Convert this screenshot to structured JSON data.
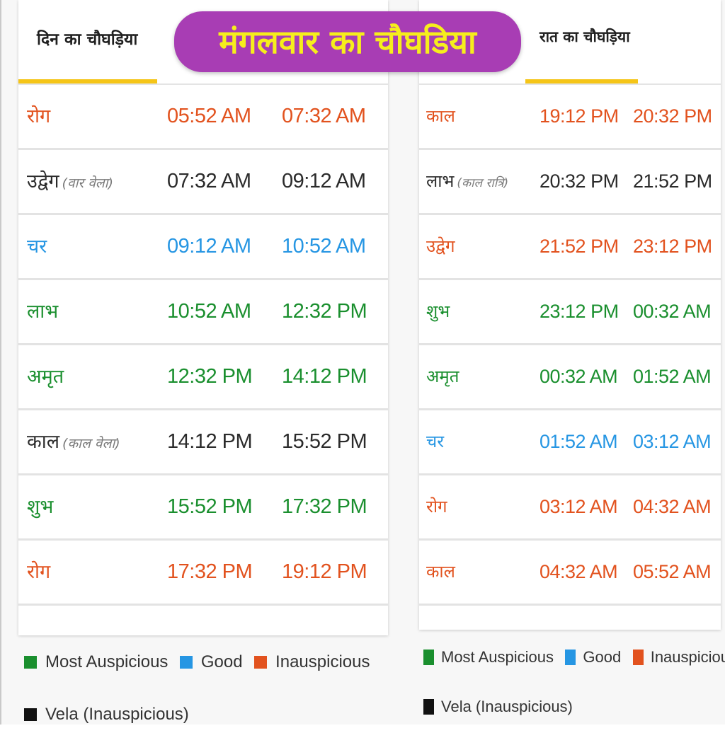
{
  "title": "मंगलवार का चौघडिया",
  "day": {
    "tab_label": "दिन का चौघड़िया",
    "rows": [
      {
        "name": "रोग",
        "note": "",
        "start": "05:52 AM",
        "end": "07:32 AM",
        "type": "red"
      },
      {
        "name": "उद्वेग",
        "note": "(वार वेला)",
        "start": "07:32 AM",
        "end": "09:12 AM",
        "type": "black"
      },
      {
        "name": "चर",
        "note": "",
        "start": "09:12 AM",
        "end": "10:52 AM",
        "type": "blue"
      },
      {
        "name": "लाभ",
        "note": "",
        "start": "10:52 AM",
        "end": "12:32 PM",
        "type": "green"
      },
      {
        "name": "अमृत",
        "note": "",
        "start": "12:32 PM",
        "end": "14:12 PM",
        "type": "green"
      },
      {
        "name": "काल",
        "note": "(काल वेला)",
        "start": "14:12 PM",
        "end": "15:52 PM",
        "type": "black"
      },
      {
        "name": "शुभ",
        "note": "",
        "start": "15:52 PM",
        "end": "17:32 PM",
        "type": "green"
      },
      {
        "name": "रोग",
        "note": "",
        "start": "17:32 PM",
        "end": "19:12 PM",
        "type": "red"
      }
    ]
  },
  "night": {
    "tab_label": "रात का चौघड़िया",
    "rows": [
      {
        "name": "काल",
        "note": "",
        "start": "19:12 PM",
        "end": "20:32 PM",
        "type": "red"
      },
      {
        "name": "लाभ",
        "note": "(काल रात्रि)",
        "start": "20:32 PM",
        "end": "21:52 PM",
        "type": "black"
      },
      {
        "name": "उद्वेग",
        "note": "",
        "start": "21:52 PM",
        "end": "23:12 PM",
        "type": "red"
      },
      {
        "name": "शुभ",
        "note": "",
        "start": "23:12 PM",
        "end": "00:32 AM",
        "type": "green"
      },
      {
        "name": "अमृत",
        "note": "",
        "start": "00:32 AM",
        "end": "01:52 AM",
        "type": "green"
      },
      {
        "name": "चर",
        "note": "",
        "start": "01:52 AM",
        "end": "03:12 AM",
        "type": "blue"
      },
      {
        "name": "रोग",
        "note": "",
        "start": "03:12 AM",
        "end": "04:32 AM",
        "type": "red"
      },
      {
        "name": "काल",
        "note": "",
        "start": "04:32 AM",
        "end": "05:52 AM",
        "type": "red"
      }
    ]
  },
  "legend": {
    "most_auspicious": "Most Auspicious",
    "good": "Good",
    "inauspicious": "Inauspicious",
    "vela": "Vela (Inauspicious)"
  },
  "colors": {
    "green": "#1a8f2e",
    "blue": "#2696e3",
    "red": "#e2521e",
    "black": "#1e1e1e",
    "tab_underline": "#f5c518",
    "banner_bg": "#a83db4",
    "banner_text": "#f6ee1c"
  }
}
